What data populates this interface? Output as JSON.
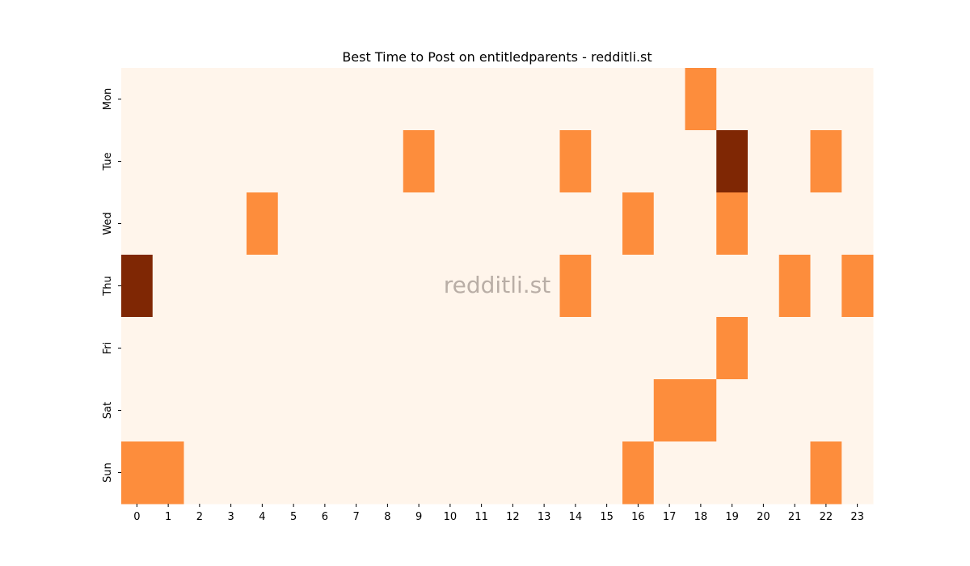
{
  "chart_data": {
    "type": "heatmap",
    "title": "Best Time to Post on entitledparents - redditli.st",
    "watermark": "redditli.st",
    "x_categories": [
      "0",
      "1",
      "2",
      "3",
      "4",
      "5",
      "6",
      "7",
      "8",
      "9",
      "10",
      "11",
      "12",
      "13",
      "14",
      "15",
      "16",
      "17",
      "18",
      "19",
      "20",
      "21",
      "22",
      "23"
    ],
    "y_categories": [
      "Mon",
      "Tue",
      "Wed",
      "Thu",
      "Fri",
      "Sat",
      "Sun"
    ],
    "values": [
      [
        0,
        0,
        0,
        0,
        0,
        0,
        0,
        0,
        0,
        0,
        0,
        0,
        0,
        0,
        0,
        0,
        0,
        0,
        1,
        0,
        0,
        0,
        0,
        0
      ],
      [
        0,
        0,
        0,
        0,
        0,
        0,
        0,
        0,
        0,
        1,
        0,
        0,
        0,
        0,
        1,
        0,
        0,
        0,
        0,
        2,
        0,
        0,
        1,
        0
      ],
      [
        0,
        0,
        0,
        0,
        1,
        0,
        0,
        0,
        0,
        0,
        0,
        0,
        0,
        0,
        0,
        0,
        1,
        0,
        0,
        1,
        0,
        0,
        0,
        0
      ],
      [
        2,
        0,
        0,
        0,
        0,
        0,
        0,
        0,
        0,
        0,
        0,
        0,
        0,
        0,
        1,
        0,
        0,
        0,
        0,
        0,
        0,
        1,
        0,
        1
      ],
      [
        0,
        0,
        0,
        0,
        0,
        0,
        0,
        0,
        0,
        0,
        0,
        0,
        0,
        0,
        0,
        0,
        0,
        0,
        0,
        1,
        0,
        0,
        0,
        0
      ],
      [
        0,
        0,
        0,
        0,
        0,
        0,
        0,
        0,
        0,
        0,
        0,
        0,
        0,
        0,
        0,
        0,
        0,
        1,
        1,
        0,
        0,
        0,
        0,
        0
      ],
      [
        1,
        1,
        0,
        0,
        0,
        0,
        0,
        0,
        0,
        0,
        0,
        0,
        0,
        0,
        0,
        0,
        1,
        0,
        0,
        0,
        0,
        0,
        1,
        0
      ]
    ],
    "colormap": "Oranges",
    "colors": {
      "0": "#fff5eb",
      "1": "#fd8d3c",
      "2": "#7f2704"
    },
    "colorbar": false,
    "grid": false
  }
}
